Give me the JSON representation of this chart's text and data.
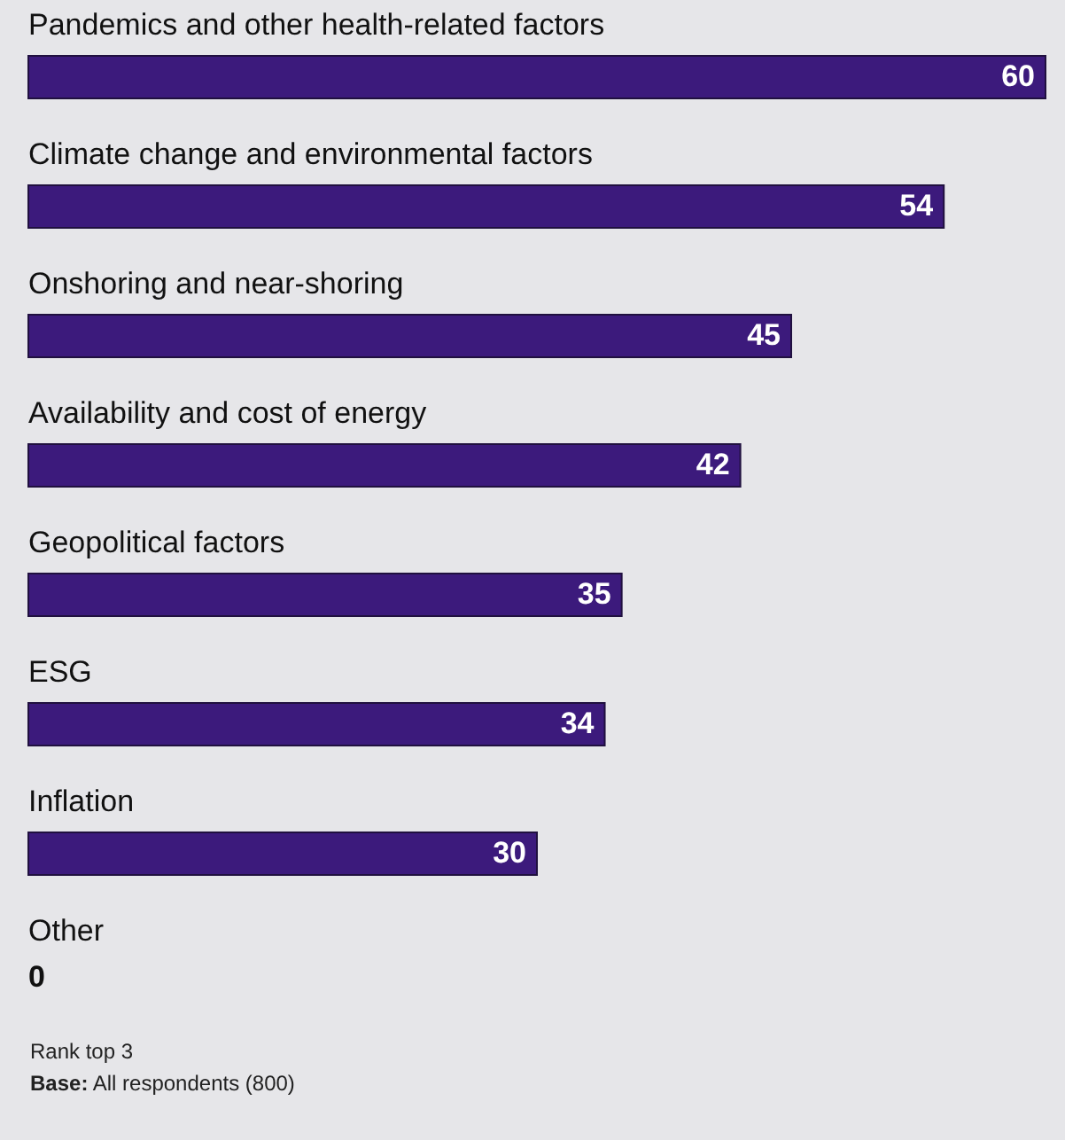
{
  "chart_data": {
    "type": "bar",
    "orientation": "horizontal",
    "categories": [
      "Pandemics and other health-related factors",
      "Climate change and environmental factors",
      "Onshoring and near-shoring",
      "Availability and cost of energy",
      "Geopolitical factors",
      "ESG",
      "Inflation",
      "Other"
    ],
    "values": [
      60,
      54,
      45,
      42,
      35,
      34,
      30,
      0
    ],
    "color": "#3c1a7c",
    "data_labels": true,
    "annotations": [
      "Rank top 3",
      "Base: All respondents (800)"
    ]
  }
}
